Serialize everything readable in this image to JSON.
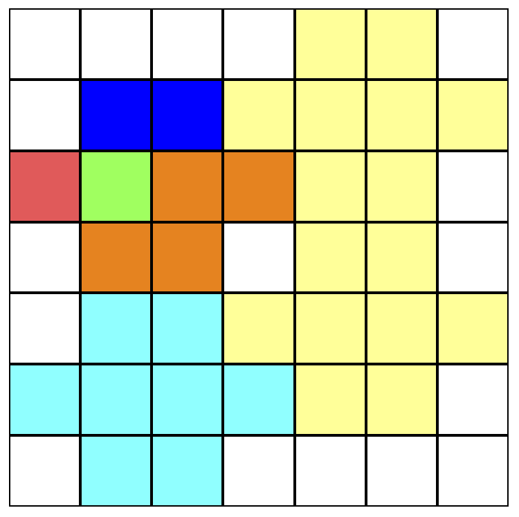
{
  "palette": {
    "W": "#ffffff",
    "Y": "#ffff99",
    "B": "#0000ff",
    "R": "#e05a5a",
    "G": "#a0ff60",
    "O": "#e58320",
    "C": "#90ffff"
  },
  "color_names": {
    "W": "empty",
    "Y": "yellow",
    "B": "blue",
    "R": "red",
    "G": "green",
    "O": "orange",
    "C": "cyan"
  },
  "grid": [
    [
      "W",
      "W",
      "W",
      "W",
      "Y",
      "Y",
      "W"
    ],
    [
      "W",
      "B",
      "B",
      "Y",
      "Y",
      "Y",
      "Y"
    ],
    [
      "R",
      "G",
      "O",
      "O",
      "Y",
      "Y",
      "W"
    ],
    [
      "W",
      "O",
      "O",
      "W",
      "Y",
      "Y",
      "W"
    ],
    [
      "W",
      "C",
      "C",
      "Y",
      "Y",
      "Y",
      "Y"
    ],
    [
      "C",
      "C",
      "C",
      "C",
      "Y",
      "Y",
      "W"
    ],
    [
      "W",
      "C",
      "C",
      "W",
      "W",
      "W",
      "W"
    ]
  ]
}
